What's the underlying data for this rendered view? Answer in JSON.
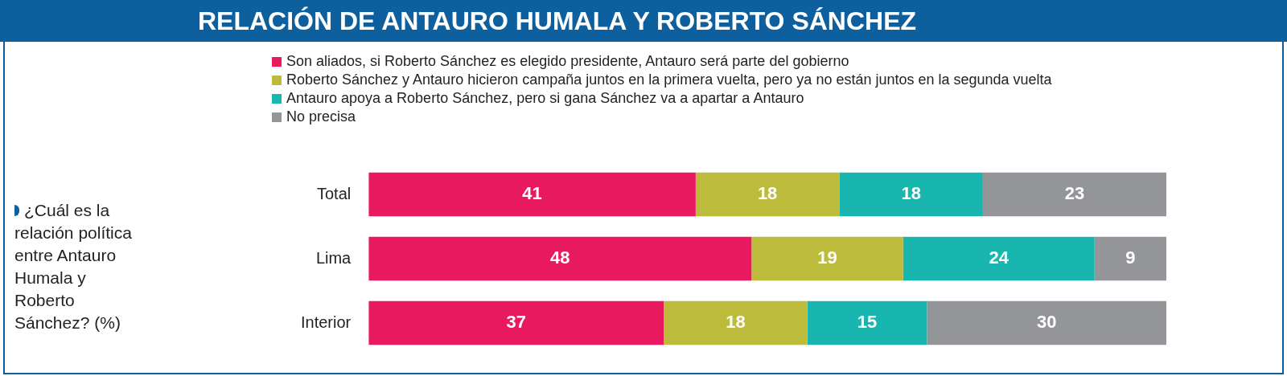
{
  "chart_data": {
    "type": "bar",
    "orientation": "horizontal",
    "stacked": true,
    "title": "RELACIÓN DE ANTAURO HUMALA Y ROBERTO SÁNCHEZ",
    "annotations": [
      "¿Cuál es la relación política entre Antauro Humala y Roberto Sánchez? (%)"
    ],
    "categories": [
      "Total",
      "Lima",
      "Interior"
    ],
    "xlim": [
      0,
      100
    ],
    "legend": "top left",
    "data_labels": true,
    "series": [
      {
        "name": "Son aliados, si Roberto Sánchez es elegido presidente, Antauro será parte del gobierno",
        "color": "#e8195f",
        "values": [
          41,
          48,
          37
        ]
      },
      {
        "name": "Roberto Sánchez y Antauro hicieron campaña juntos en la primera vuelta, pero ya no están juntos en la segunda vuelta",
        "color": "#bdbb3b",
        "values": [
          18,
          19,
          18
        ]
      },
      {
        "name": "Antauro apoya a Roberto Sánchez, pero si gana Sánchez va a apartar a Antauro",
        "color": "#18b6ae",
        "values": [
          18,
          24,
          15
        ]
      },
      {
        "name": "No precisa",
        "color": "#939598",
        "values": [
          23,
          9,
          30
        ]
      }
    ]
  }
}
